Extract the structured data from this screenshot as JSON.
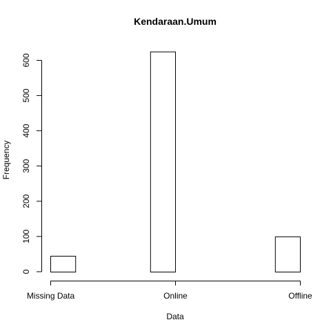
{
  "chart_data": {
    "type": "bar",
    "title": "Kendaraan.Umum",
    "xlabel": "Data",
    "ylabel": "Frequency",
    "ylim": [
      0,
      600
    ],
    "yticks": [
      0,
      100,
      200,
      300,
      400,
      500,
      600
    ],
    "xlim": [
      1,
      3
    ],
    "xticks": [
      {
        "value": 1,
        "label": "Missing Data"
      },
      {
        "value": 2,
        "label": "Online"
      },
      {
        "value": 3,
        "label": "Offline"
      }
    ],
    "bins": [
      {
        "x0": 1.0,
        "x1": 1.2,
        "value": 45
      },
      {
        "x0": 1.2,
        "x1": 1.4,
        "value": 0
      },
      {
        "x0": 1.4,
        "x1": 1.6,
        "value": 0
      },
      {
        "x0": 1.6,
        "x1": 1.8,
        "value": 0
      },
      {
        "x0": 1.8,
        "x1": 2.0,
        "value": 625
      },
      {
        "x0": 2.0,
        "x1": 2.2,
        "value": 0
      },
      {
        "x0": 2.2,
        "x1": 2.4,
        "value": 0
      },
      {
        "x0": 2.4,
        "x1": 2.6,
        "value": 0
      },
      {
        "x0": 2.6,
        "x1": 2.8,
        "value": 0
      },
      {
        "x0": 2.8,
        "x1": 3.0,
        "value": 100
      }
    ]
  }
}
